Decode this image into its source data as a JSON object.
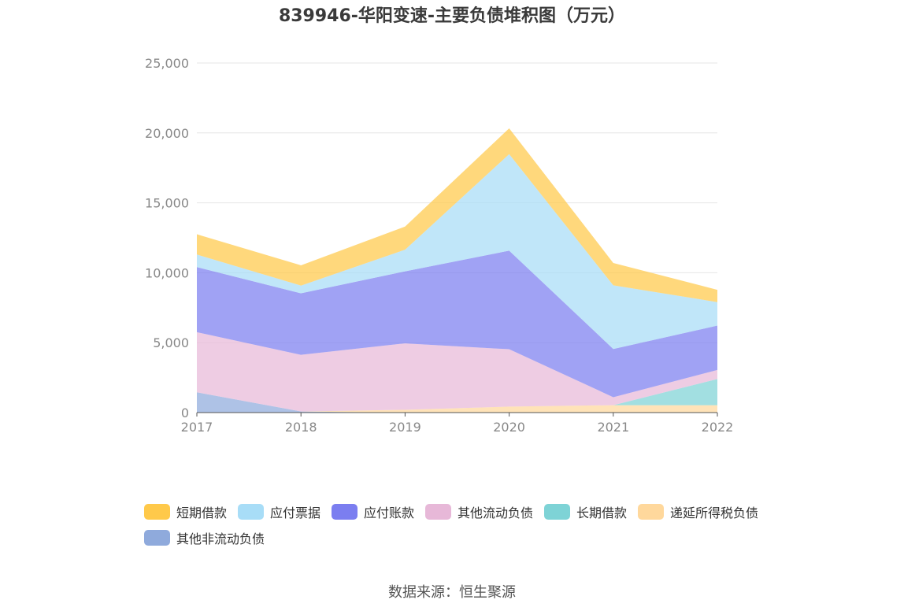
{
  "chart_data": {
    "type": "area",
    "stacked": true,
    "title": "839946-华阳变速-主要负债堆积图（万元）",
    "categories": [
      "2017",
      "2018",
      "2019",
      "2020",
      "2021",
      "2022"
    ],
    "ylim": [
      0,
      25000
    ],
    "yticks": [
      0,
      5000,
      10000,
      15000,
      20000,
      25000
    ],
    "ytick_labels": [
      "0",
      "5,000",
      "10,000",
      "15,000",
      "20,000",
      "25,000"
    ],
    "grid": true,
    "legend_position": "bottom",
    "series": [
      {
        "name": "其他非流动负债",
        "color": "#8FAADC",
        "values": [
          1450,
          80,
          0,
          0,
          0,
          0
        ]
      },
      {
        "name": "递延所得税负债",
        "color": "#FFD89C",
        "values": [
          0,
          0,
          200,
          430,
          530,
          530
        ]
      },
      {
        "name": "长期借款",
        "color": "#7ED3D6",
        "values": [
          0,
          0,
          0,
          0,
          0,
          1870
        ]
      },
      {
        "name": "其他流动负债",
        "color": "#E7B8D8",
        "values": [
          4300,
          4050,
          4750,
          4100,
          570,
          650
        ]
      },
      {
        "name": "应付账款",
        "color": "#7B7EF0",
        "values": [
          4650,
          4400,
          5150,
          7050,
          3450,
          3170
        ]
      },
      {
        "name": "应付票据",
        "color": "#A8DDF7",
        "values": [
          900,
          550,
          1550,
          6900,
          4550,
          1680
        ]
      },
      {
        "name": "短期借款",
        "color": "#FFC94A",
        "values": [
          1450,
          1450,
          1650,
          1850,
          1600,
          880
        ]
      }
    ]
  },
  "legend": {
    "items": [
      {
        "label": "短期借款",
        "color": "#FFC94A"
      },
      {
        "label": "应付票据",
        "color": "#A8DDF7"
      },
      {
        "label": "应付账款",
        "color": "#7B7EF0"
      },
      {
        "label": "其他流动负债",
        "color": "#E7B8D8"
      },
      {
        "label": "长期借款",
        "color": "#7ED3D6"
      },
      {
        "label": "递延所得税负债",
        "color": "#FFD89C"
      },
      {
        "label": "其他非流动负债",
        "color": "#8FAADC"
      }
    ]
  },
  "footer": {
    "source": "数据来源：恒生聚源"
  }
}
